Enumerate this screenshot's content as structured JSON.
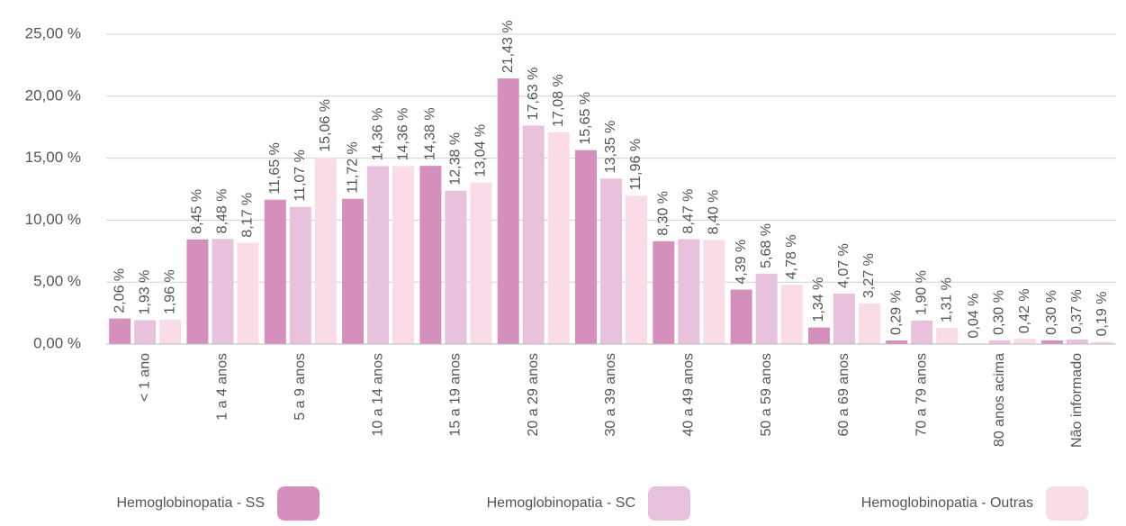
{
  "chart_data": {
    "type": "bar",
    "categories": [
      "< 1 ano",
      "1 a 4 anos",
      "5 a 9 anos",
      "10 a 14 anos",
      "15 a 19 anos",
      "20 a 29 anos",
      "30 a 39 anos",
      "40 a 49 anos",
      "50 a 59 anos",
      "60 a 69 anos",
      "70 a 79 anos",
      "80 anos acima",
      "Não informado"
    ],
    "series": [
      {
        "name": "Hemoglobinopatia - SS",
        "color": "#d48fbd",
        "values": [
          2.06,
          8.45,
          11.65,
          11.72,
          14.38,
          21.43,
          15.65,
          8.3,
          4.39,
          1.34,
          0.29,
          0.04,
          0.3
        ],
        "value_labels": [
          "2,06 %",
          "8,45 %",
          "11,65 %",
          "11,72 %",
          "14,38 %",
          "21,43 %",
          "15,65 %",
          "8,30 %",
          "4,39 %",
          "1,34 %",
          "0,29 %",
          "0,04 %",
          "0,30 %"
        ]
      },
      {
        "name": "Hemoglobinopatia - SC",
        "color": "#e8c1dc",
        "values": [
          1.93,
          8.48,
          11.07,
          14.36,
          12.38,
          17.63,
          13.35,
          8.47,
          5.68,
          4.07,
          1.9,
          0.3,
          0.37
        ],
        "value_labels": [
          "1,93 %",
          "8,48 %",
          "11,07 %",
          "14,36 %",
          "12,38 %",
          "17,63 %",
          "13,35 %",
          "8,47 %",
          "5,68 %",
          "4,07 %",
          "1,90 %",
          "0,30 %",
          "0,37 %"
        ]
      },
      {
        "name": "Hemoglobinopatia - Outras",
        "color": "#fadbe8",
        "values": [
          1.96,
          8.17,
          15.06,
          14.36,
          13.04,
          17.08,
          11.96,
          8.4,
          4.78,
          3.27,
          1.31,
          0.42,
          0.19
        ],
        "value_labels": [
          "1,96 %",
          "8,17 %",
          "15,06 %",
          "14,36 %",
          "13,04 %",
          "17,08 %",
          "11,96 %",
          "8,40 %",
          "4,78 %",
          "3,27 %",
          "1,31 %",
          "0,42 %",
          "0,19 %"
        ]
      }
    ],
    "ylim": [
      0,
      25
    ],
    "yticks": [
      {
        "value": 0,
        "label": "0,00 %"
      },
      {
        "value": 5,
        "label": "5,00 %"
      },
      {
        "value": 10,
        "label": "10,00 %"
      },
      {
        "value": 15,
        "label": "15,00 %"
      },
      {
        "value": 20,
        "label": "20,00 %"
      },
      {
        "value": 25,
        "label": "25,00 %"
      }
    ],
    "grid": true,
    "legend": "bottom"
  }
}
